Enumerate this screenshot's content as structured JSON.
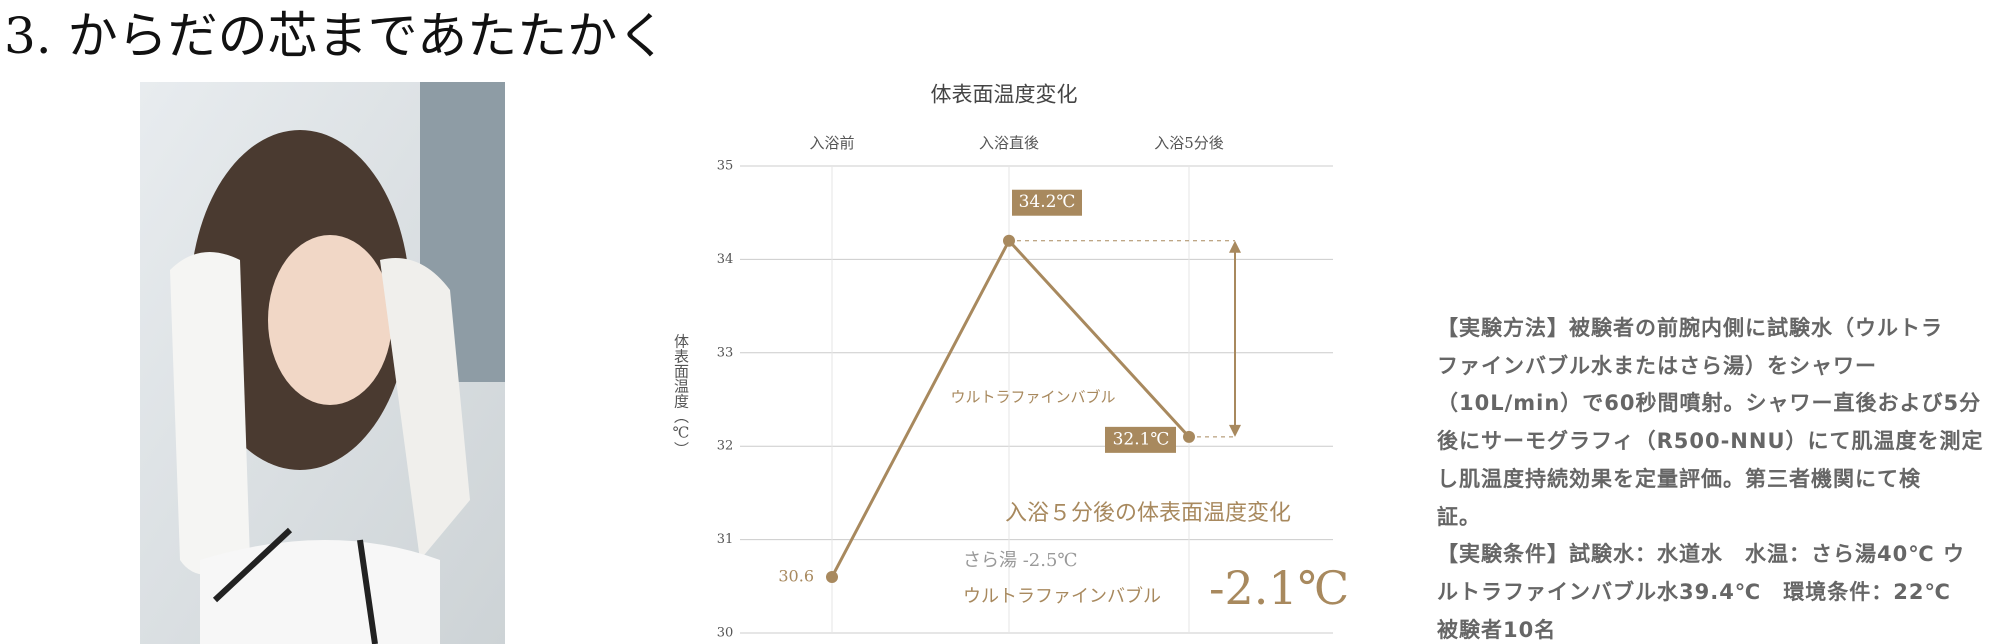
{
  "header": {
    "title": "3. からだの芯まであたたかく"
  },
  "chart_data": {
    "type": "line",
    "title": "体表面温度変化",
    "y_label": "体表面温度（℃）",
    "categories": [
      "入浴前",
      "入浴直後",
      "入浴5分後"
    ],
    "series": [
      {
        "name": "ウルトラファインバブル",
        "color": "#a8895e",
        "values": [
          30.6,
          34.2,
          32.1
        ],
        "value_labels": [
          "30.6",
          "34.2℃",
          "32.1℃"
        ]
      }
    ],
    "ylim": [
      30,
      35
    ],
    "yticks": [
      30,
      31,
      32,
      33,
      34,
      35
    ],
    "grid": true,
    "annotations": {
      "title": "入浴５分後の体表面温度変化",
      "line1": "さら湯 -2.5℃",
      "line2_label": "ウルトラファインバブル",
      "line2_value": "-2.1℃"
    }
  },
  "description": {
    "lines": [
      "【実験方法】被験者の前腕内側に試験水（ウルトラ",
      "ファインバブル水またはさら湯）をシャワー",
      "（10L/min）で60秒間噴射。シャワー直後および5分",
      "後にサーモグラフィ（R500-NNU）にて肌温度を測定",
      "し肌温度持続効果を定量評価。第三者機関にて検",
      "証。",
      "【実験条件】試験水：水道水　水温：さら湯40℃ ウ",
      "ルトラファインバブル水39.4℃　環境条件：22℃",
      "被験者10名"
    ]
  }
}
